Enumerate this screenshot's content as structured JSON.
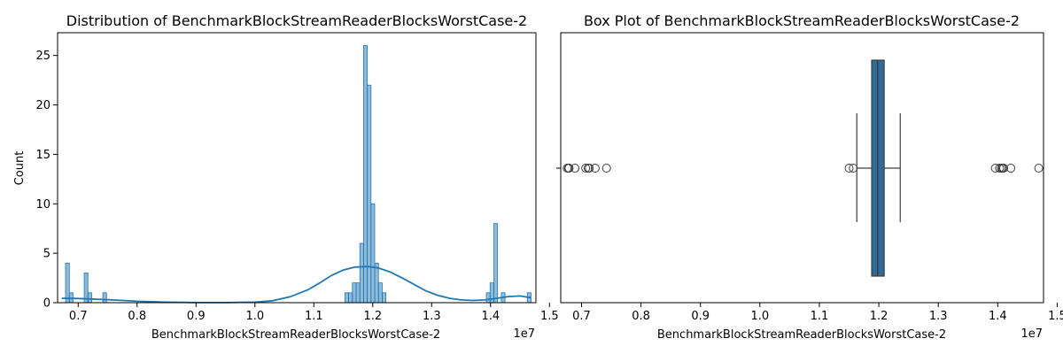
{
  "chart_data": [
    {
      "type": "histogram",
      "title": "Distribution of BenchmarkBlockStreamReaderBlocksWorstCase-2",
      "xlabel": "BenchmarkBlockStreamReaderBlocksWorstCase-2",
      "ylabel": "Count",
      "x_offset_label": "1e7",
      "xlim": [
        0.665,
        1.477
      ],
      "ylim": [
        0,
        27.3
      ],
      "x_ticks": [
        0.7,
        0.8,
        0.9,
        1.0,
        1.1,
        1.2,
        1.3,
        1.4,
        1.5
      ],
      "y_ticks": [
        0,
        5,
        10,
        15,
        20,
        25
      ],
      "bin_width": 0.00632,
      "bars": [
        {
          "x": 0.6786,
          "count": 4
        },
        {
          "x": 0.6849,
          "count": 1
        },
        {
          "x": 0.7102,
          "count": 3
        },
        {
          "x": 0.7165,
          "count": 1
        },
        {
          "x": 0.7418,
          "count": 1
        },
        {
          "x": 1.1528,
          "count": 1
        },
        {
          "x": 1.1591,
          "count": 1
        },
        {
          "x": 1.1654,
          "count": 2
        },
        {
          "x": 1.1717,
          "count": 2
        },
        {
          "x": 1.1781,
          "count": 6
        },
        {
          "x": 1.1844,
          "count": 26
        },
        {
          "x": 1.1907,
          "count": 22
        },
        {
          "x": 1.197,
          "count": 10
        },
        {
          "x": 1.2034,
          "count": 4
        },
        {
          "x": 1.2097,
          "count": 2
        },
        {
          "x": 1.216,
          "count": 1
        },
        {
          "x": 1.3929,
          "count": 1
        },
        {
          "x": 1.3992,
          "count": 2
        },
        {
          "x": 1.4056,
          "count": 8
        },
        {
          "x": 1.4182,
          "count": 1
        },
        {
          "x": 1.4624,
          "count": 1
        }
      ],
      "kde": {
        "x": [
          0.672,
          0.7,
          0.72,
          0.75,
          0.8,
          0.85,
          0.9,
          0.95,
          1.0,
          1.03,
          1.06,
          1.09,
          1.11,
          1.13,
          1.15,
          1.17,
          1.19,
          1.2,
          1.21,
          1.23,
          1.25,
          1.27,
          1.29,
          1.31,
          1.33,
          1.35,
          1.37,
          1.39,
          1.41,
          1.43,
          1.45,
          1.468
        ],
        "y": [
          0.45,
          0.42,
          0.38,
          0.3,
          0.14,
          0.05,
          0.01,
          0.01,
          0.05,
          0.2,
          0.6,
          1.3,
          2.0,
          2.75,
          3.3,
          3.6,
          3.65,
          3.6,
          3.5,
          3.1,
          2.5,
          1.85,
          1.2,
          0.75,
          0.45,
          0.28,
          0.22,
          0.28,
          0.44,
          0.62,
          0.68,
          0.5
        ]
      },
      "color": "#1f77b4"
    },
    {
      "type": "box",
      "title": "Box Plot of BenchmarkBlockStreamReaderBlocksWorstCase-2",
      "xlabel": "BenchmarkBlockStreamReaderBlocksWorstCase-2",
      "x_offset_label": "1e7",
      "xlim": [
        0.665,
        1.477
      ],
      "x_ticks": [
        0.7,
        0.8,
        0.9,
        1.0,
        1.1,
        1.2,
        1.3,
        1.4,
        1.5
      ],
      "q1": 1.188,
      "median": 1.198,
      "q3": 1.209,
      "whisker_low": 1.163,
      "whisker_high": 1.236,
      "outliers": [
        0.676,
        0.678,
        0.679,
        0.689,
        0.707,
        0.711,
        0.713,
        0.723,
        0.742,
        1.15,
        1.157,
        1.396,
        1.403,
        1.406,
        1.408,
        1.41,
        1.422,
        1.469
      ],
      "color": "#2e6b9a"
    }
  ]
}
